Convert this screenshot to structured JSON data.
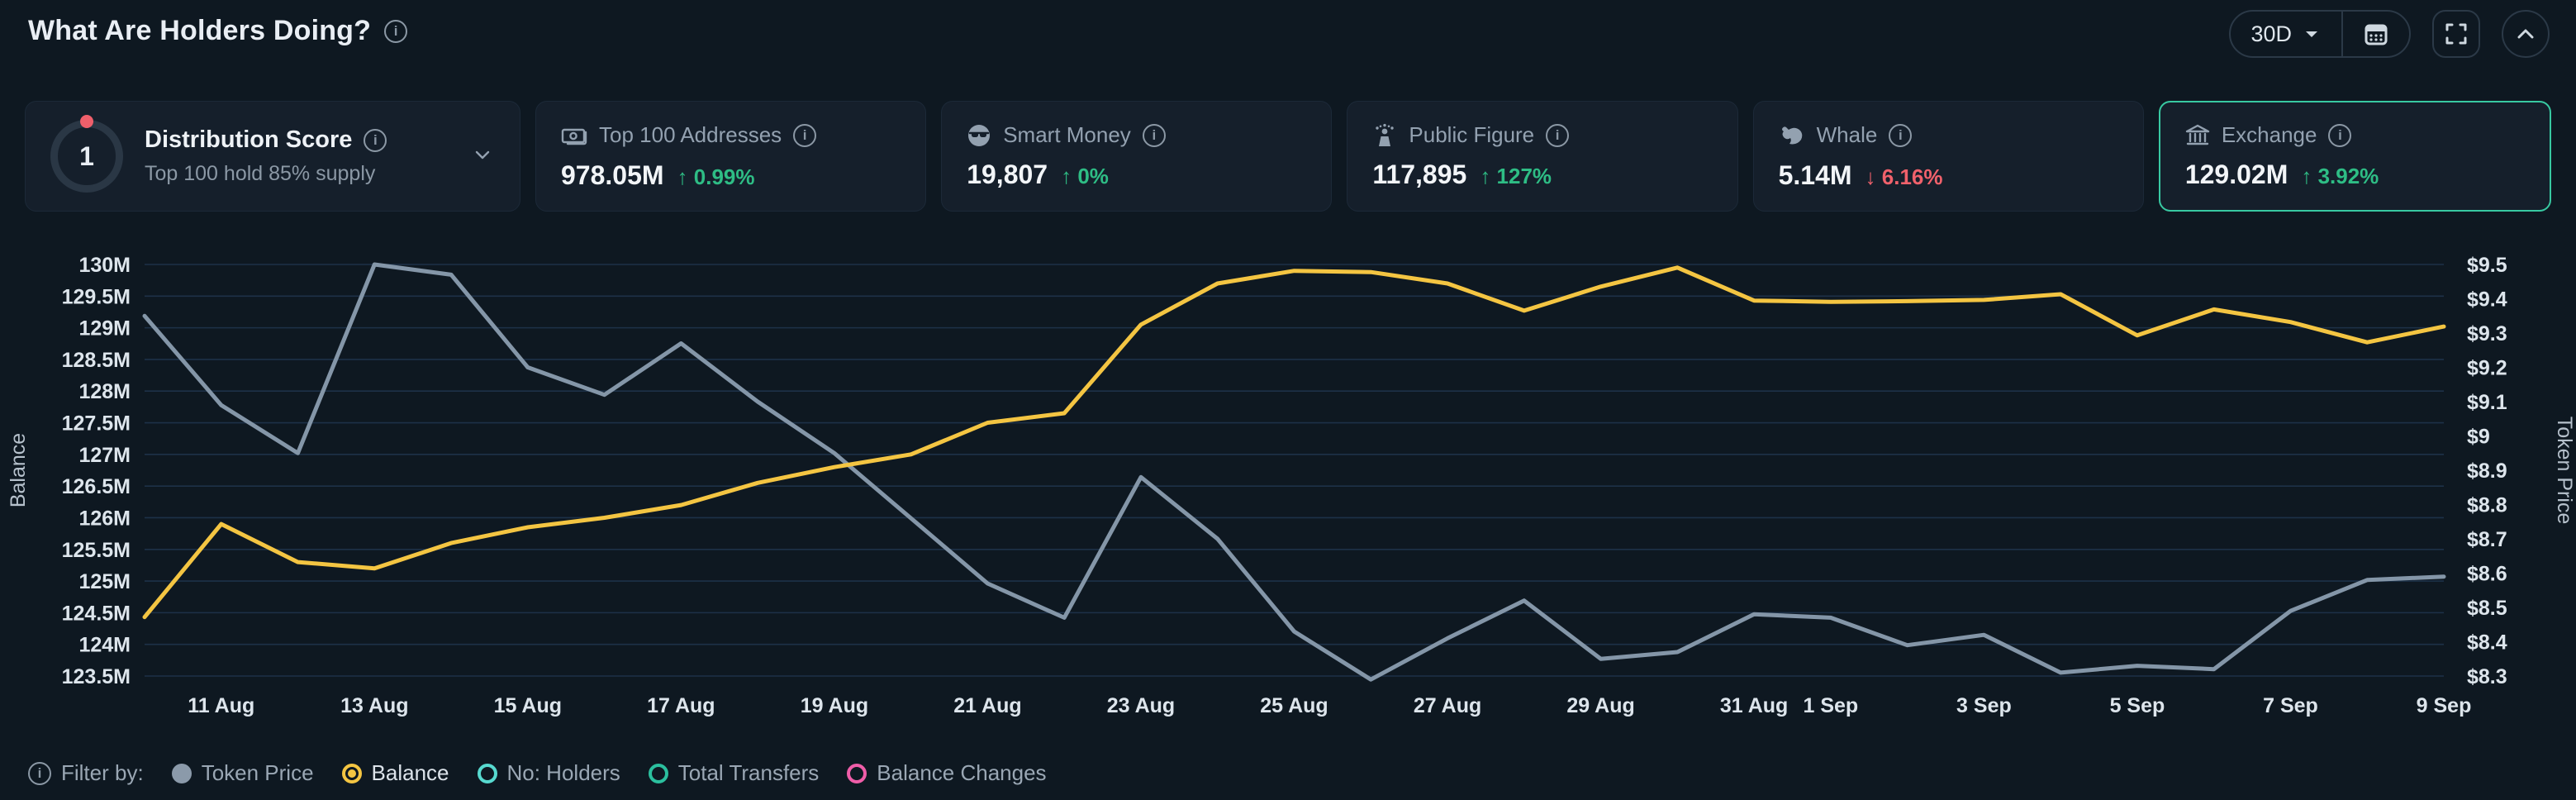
{
  "header": {
    "title": "What Are Holders Doing?",
    "range_label": "30D"
  },
  "cards": [
    {
      "label": "Distribution Score",
      "score": "1",
      "subtitle": "Top 100 hold 85% supply"
    },
    {
      "label": "Top 100 Addresses",
      "value": "978.05M",
      "arrow": "↑",
      "change": "0.99%",
      "direction": "up",
      "change_color": "#2ebd85"
    },
    {
      "label": "Smart Money",
      "value": "19,807",
      "arrow": "↑",
      "change": "0%",
      "direction": "up",
      "change_color": "#2ebd85"
    },
    {
      "label": "Public Figure",
      "value": "117,895",
      "arrow": "↑",
      "change": "127%",
      "direction": "up",
      "change_color": "#2ebd85"
    },
    {
      "label": "Whale",
      "value": "5.14M",
      "arrow": "↓",
      "change": "6.16%",
      "direction": "down",
      "change_color": "#f0616b"
    },
    {
      "label": "Exchange",
      "value": "129.02M",
      "arrow": "↑",
      "change": "3.92%",
      "direction": "up",
      "change_color": "#2ebd85",
      "selected": true
    }
  ],
  "chart_data": {
    "type": "line",
    "x": [
      "10 Aug",
      "11 Aug",
      "12 Aug",
      "13 Aug",
      "14 Aug",
      "15 Aug",
      "16 Aug",
      "17 Aug",
      "18 Aug",
      "19 Aug",
      "20 Aug",
      "21 Aug",
      "22 Aug",
      "23 Aug",
      "24 Aug",
      "25 Aug",
      "26 Aug",
      "27 Aug",
      "28 Aug",
      "29 Aug",
      "30 Aug",
      "31 Aug",
      "1 Sep",
      "2 Sep",
      "3 Sep",
      "4 Sep",
      "5 Sep",
      "6 Sep",
      "7 Sep",
      "8 Sep",
      "9 Sep"
    ],
    "x_ticks": [
      {
        "i": 1,
        "label": "11 Aug"
      },
      {
        "i": 3,
        "label": "13 Aug"
      },
      {
        "i": 5,
        "label": "15 Aug"
      },
      {
        "i": 7,
        "label": "17 Aug"
      },
      {
        "i": 9,
        "label": "19 Aug"
      },
      {
        "i": 11,
        "label": "21 Aug"
      },
      {
        "i": 13,
        "label": "23 Aug"
      },
      {
        "i": 15,
        "label": "25 Aug"
      },
      {
        "i": 17,
        "label": "27 Aug"
      },
      {
        "i": 19,
        "label": "29 Aug"
      },
      {
        "i": 21,
        "label": "31 Aug"
      },
      {
        "i": 22,
        "label": "1 Sep"
      },
      {
        "i": 24,
        "label": "3 Sep"
      },
      {
        "i": 26,
        "label": "5 Sep"
      },
      {
        "i": 28,
        "label": "7 Sep"
      },
      {
        "i": 30,
        "label": "9 Sep"
      }
    ],
    "y_left": {
      "title": "Balance",
      "min": 123.5,
      "max": 130,
      "ticks": [
        "130M",
        "129.5M",
        "129M",
        "128.5M",
        "128M",
        "127.5M",
        "127M",
        "126.5M",
        "126M",
        "125.5M",
        "125M",
        "124.5M",
        "124M",
        "123.5M"
      ]
    },
    "y_right": {
      "title": "Token Price",
      "min": 8.3,
      "max": 9.5,
      "ticks": [
        "$9.5",
        "$9.4",
        "$9.3",
        "$9.2",
        "$9.1",
        "$9",
        "$8.9",
        "$8.8",
        "$8.7",
        "$8.6",
        "$8.5",
        "$8.4",
        "$8.3"
      ]
    },
    "series": [
      {
        "name": "Token Price",
        "axis": "right",
        "color": "#8496a8",
        "values": [
          9.35,
          9.09,
          8.95,
          9.5,
          9.47,
          9.2,
          9.12,
          9.27,
          9.1,
          8.95,
          8.76,
          8.57,
          8.47,
          8.88,
          8.7,
          8.43,
          8.29,
          8.41,
          8.52,
          8.35,
          8.37,
          8.48,
          8.47,
          8.39,
          8.42,
          8.31,
          8.33,
          8.32,
          8.49,
          8.58,
          8.59
        ]
      },
      {
        "name": "Balance",
        "axis": "left",
        "color": "#f4c542",
        "values": [
          124.43,
          125.9,
          125.3,
          125.2,
          125.6,
          125.85,
          126.0,
          126.2,
          126.55,
          126.8,
          127.0,
          127.5,
          127.65,
          129.05,
          129.7,
          129.9,
          129.88,
          129.7,
          129.27,
          129.65,
          129.95,
          129.43,
          129.41,
          129.42,
          129.44,
          129.53,
          128.88,
          129.29,
          129.09,
          128.77,
          129.02
        ]
      }
    ],
    "grid": true,
    "legend_position": "bottom"
  },
  "legend": {
    "prefix": "Filter by:",
    "items": [
      {
        "label": "Token Price",
        "color": "#8b9aaa",
        "style": "filled",
        "active": false
      },
      {
        "label": "Balance",
        "color": "#f4c542",
        "style": "radio",
        "active": true
      },
      {
        "label": "No: Holders",
        "color": "#57d9cf",
        "style": "ring",
        "active": false
      },
      {
        "label": "Total Transfers",
        "color": "#2bbf9e",
        "style": "ring",
        "active": false
      },
      {
        "label": "Balance Changes",
        "color": "#ef5da8",
        "style": "ring",
        "active": false
      }
    ]
  }
}
